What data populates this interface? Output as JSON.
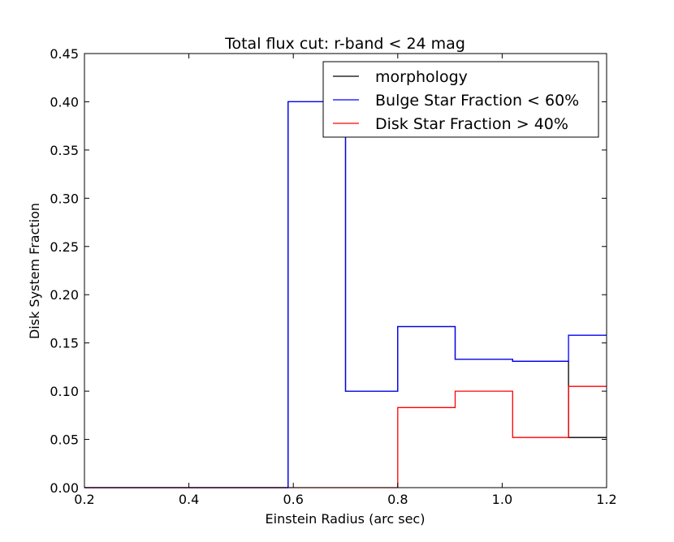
{
  "chart_data": {
    "type": "line",
    "title": "Total flux cut: r-band < 24 mag",
    "xlabel": "Einstein Radius (arc sec)",
    "ylabel": "Disk System Fraction",
    "xlim": [
      0.2,
      1.2
    ],
    "ylim": [
      0.0,
      0.45
    ],
    "xticks": [
      "0.2",
      "0.4",
      "0.6",
      "0.8",
      "1.0",
      "1.2"
    ],
    "yticks": [
      "0.00",
      "0.05",
      "0.10",
      "0.15",
      "0.20",
      "0.25",
      "0.30",
      "0.35",
      "0.40",
      "0.45"
    ],
    "grid": false,
    "legend_position": "top-right",
    "series": [
      {
        "name": "morphology",
        "color": "#000000",
        "x": [
          0.2,
          0.31,
          0.31,
          0.42,
          0.42,
          0.53,
          0.53,
          0.59,
          0.59,
          0.7,
          0.7,
          0.8,
          0.8,
          0.91,
          0.91,
          1.02,
          1.02,
          1.127,
          1.127,
          1.2
        ],
        "y": [
          0.0,
          0.0,
          0.0,
          0.0,
          0.0,
          0.0,
          0.0,
          0.0,
          0.4,
          0.4,
          0.1,
          0.1,
          0.167,
          0.167,
          0.133,
          0.133,
          0.131,
          0.131,
          0.052,
          0.052
        ]
      },
      {
        "name": "Bulge Star Fraction < 60%",
        "color": "#0000ff",
        "x": [
          0.2,
          0.59,
          0.59,
          0.7,
          0.7,
          0.8,
          0.8,
          0.91,
          0.91,
          1.02,
          1.02,
          1.127,
          1.127,
          1.2
        ],
        "y": [
          0.0,
          0.0,
          0.4,
          0.4,
          0.1,
          0.1,
          0.167,
          0.167,
          0.133,
          0.133,
          0.131,
          0.131,
          0.158,
          0.158
        ]
      },
      {
        "name": "Disk Star Fraction > 40%",
        "color": "#ff0000",
        "x": [
          0.2,
          0.8,
          0.8,
          0.91,
          0.91,
          1.02,
          1.02,
          1.127,
          1.127,
          1.2
        ],
        "y": [
          0.0,
          0.0,
          0.083,
          0.083,
          0.1,
          0.1,
          0.052,
          0.052,
          0.105,
          0.105
        ]
      }
    ]
  }
}
